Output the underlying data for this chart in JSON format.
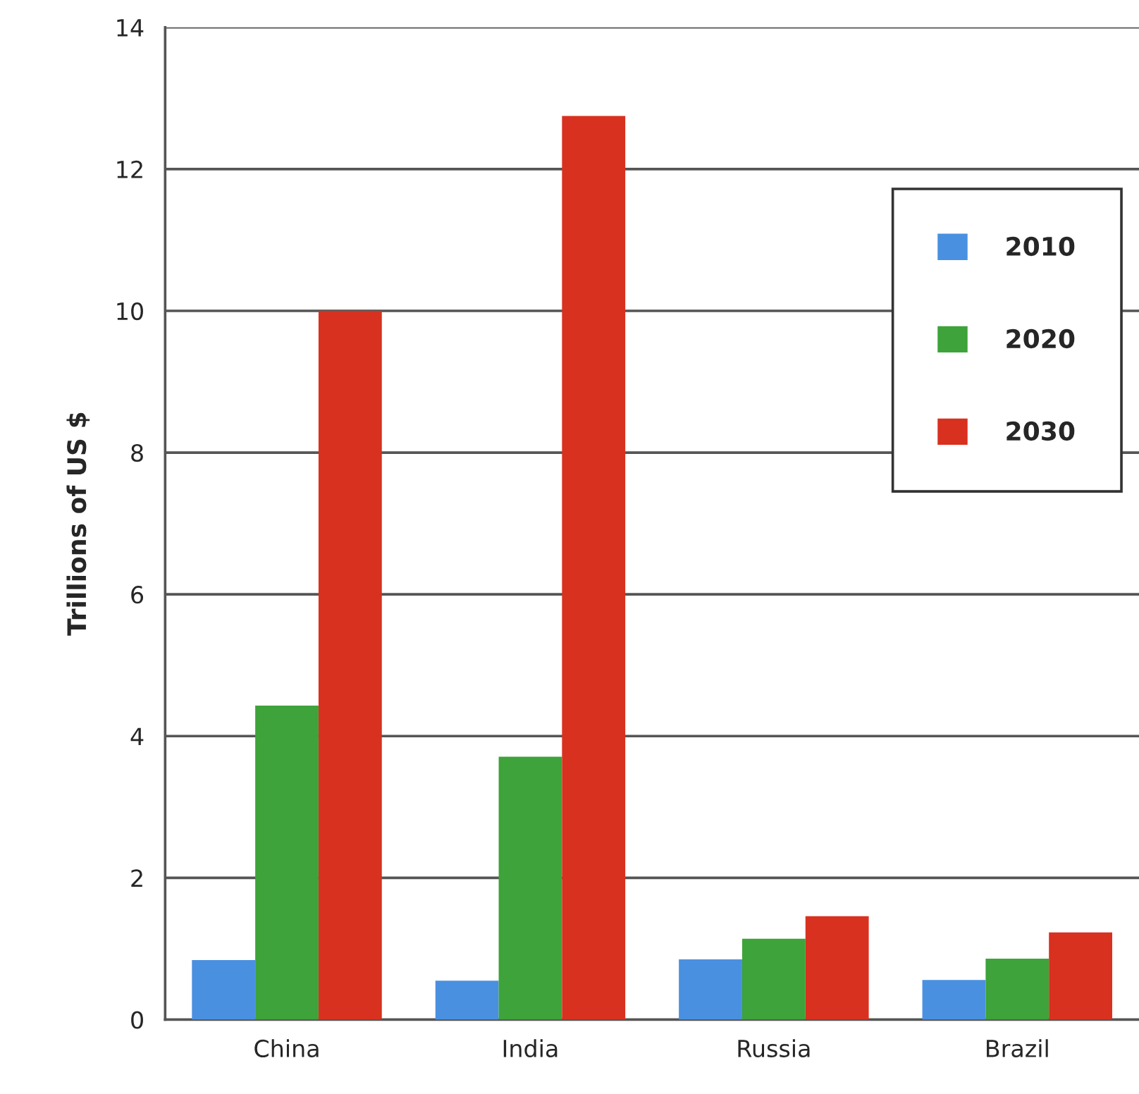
{
  "chart_data": {
    "type": "bar",
    "ylabel": "Trillions of US $",
    "categories": [
      "China",
      "India",
      "Russia",
      "Brazil"
    ],
    "series": [
      {
        "name": "2010",
        "color": "#4a90e0",
        "values": [
          0.84,
          0.55,
          0.85,
          0.56
        ]
      },
      {
        "name": "2020",
        "color": "#3ea33a",
        "values": [
          4.43,
          3.71,
          1.14,
          0.86
        ]
      },
      {
        "name": "2030",
        "color": "#d8311f",
        "values": [
          10.0,
          12.75,
          1.46,
          1.23
        ]
      }
    ],
    "ylim": [
      0,
      14
    ],
    "yticks": [
      0,
      2,
      4,
      6,
      8,
      10,
      12,
      14
    ],
    "grid": "y",
    "legend": "top right"
  }
}
